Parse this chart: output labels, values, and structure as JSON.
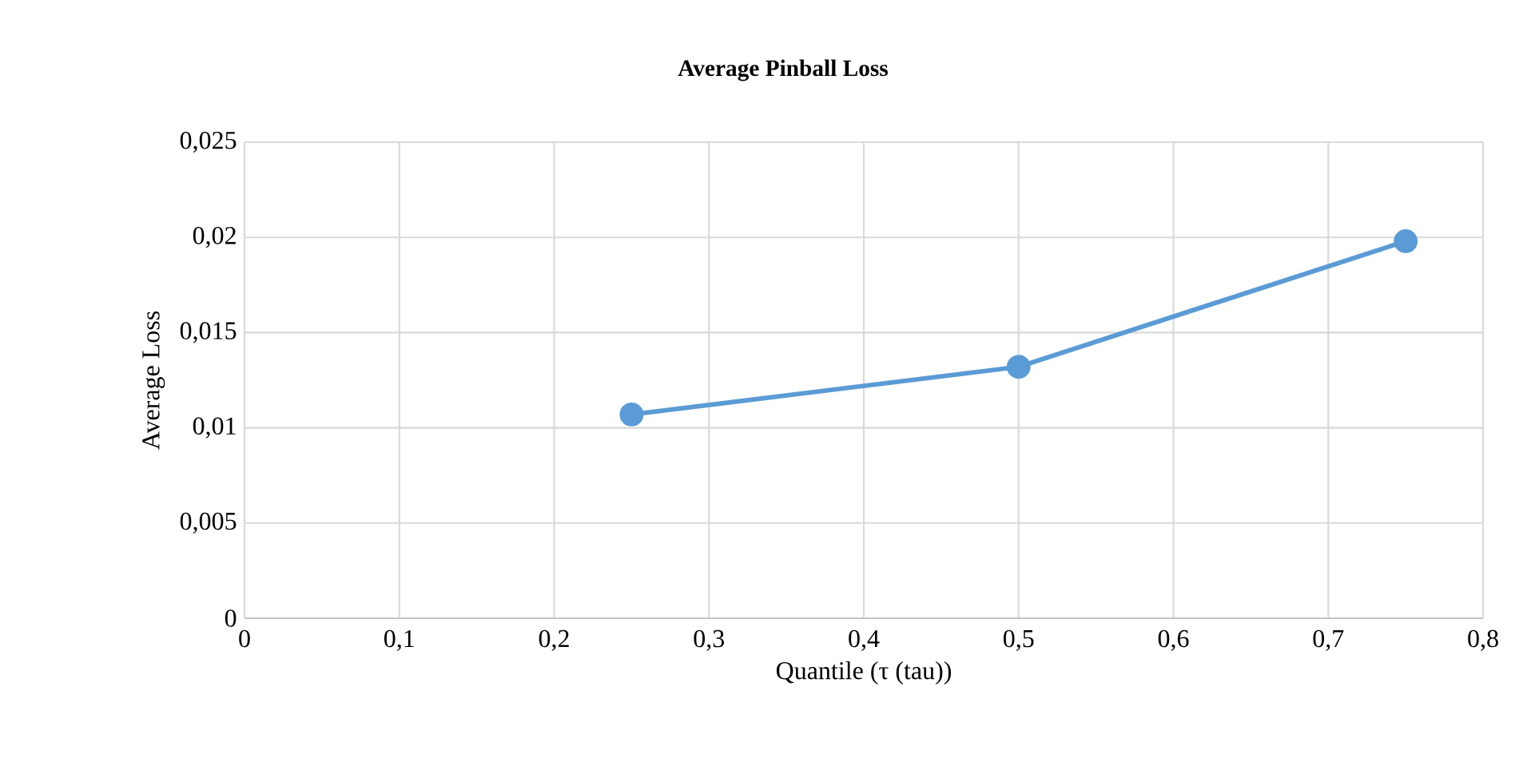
{
  "chart_data": {
    "type": "line",
    "title": "Average Pinball Loss",
    "xlabel": "Quantile (τ (tau))",
    "ylabel": "Average Loss",
    "x": [
      0.25,
      0.5,
      0.75
    ],
    "series": [
      {
        "color": "#5b9bd5",
        "values": [
          0.0107,
          0.0132,
          0.0198
        ]
      }
    ],
    "xlim": [
      0,
      0.8
    ],
    "ylim": [
      0,
      0.025
    ],
    "xticks": [
      0,
      {
        "value": 0.1,
        "label": "0,1"
      },
      {
        "value": 0.2,
        "label": "0,2"
      },
      {
        "value": 0.3,
        "label": "0,3"
      },
      {
        "value": 0.4,
        "label": "0,4"
      },
      {
        "value": 0.5,
        "label": "0,5"
      },
      {
        "value": 0.6,
        "label": "0,6"
      },
      {
        "value": 0.7,
        "label": "0,7"
      },
      {
        "value": 0.8,
        "label": "0,8"
      }
    ],
    "yticks": [
      0,
      {
        "value": 0.005,
        "label": "0,005"
      },
      {
        "value": 0.01,
        "label": "0,01"
      },
      {
        "value": 0.015,
        "label": "0,015"
      },
      {
        "value": 0.02,
        "label": "0,02"
      },
      {
        "value": 0.025,
        "label": "0,025"
      }
    ],
    "grid": true,
    "marker": "circle",
    "line_style": "solid"
  }
}
